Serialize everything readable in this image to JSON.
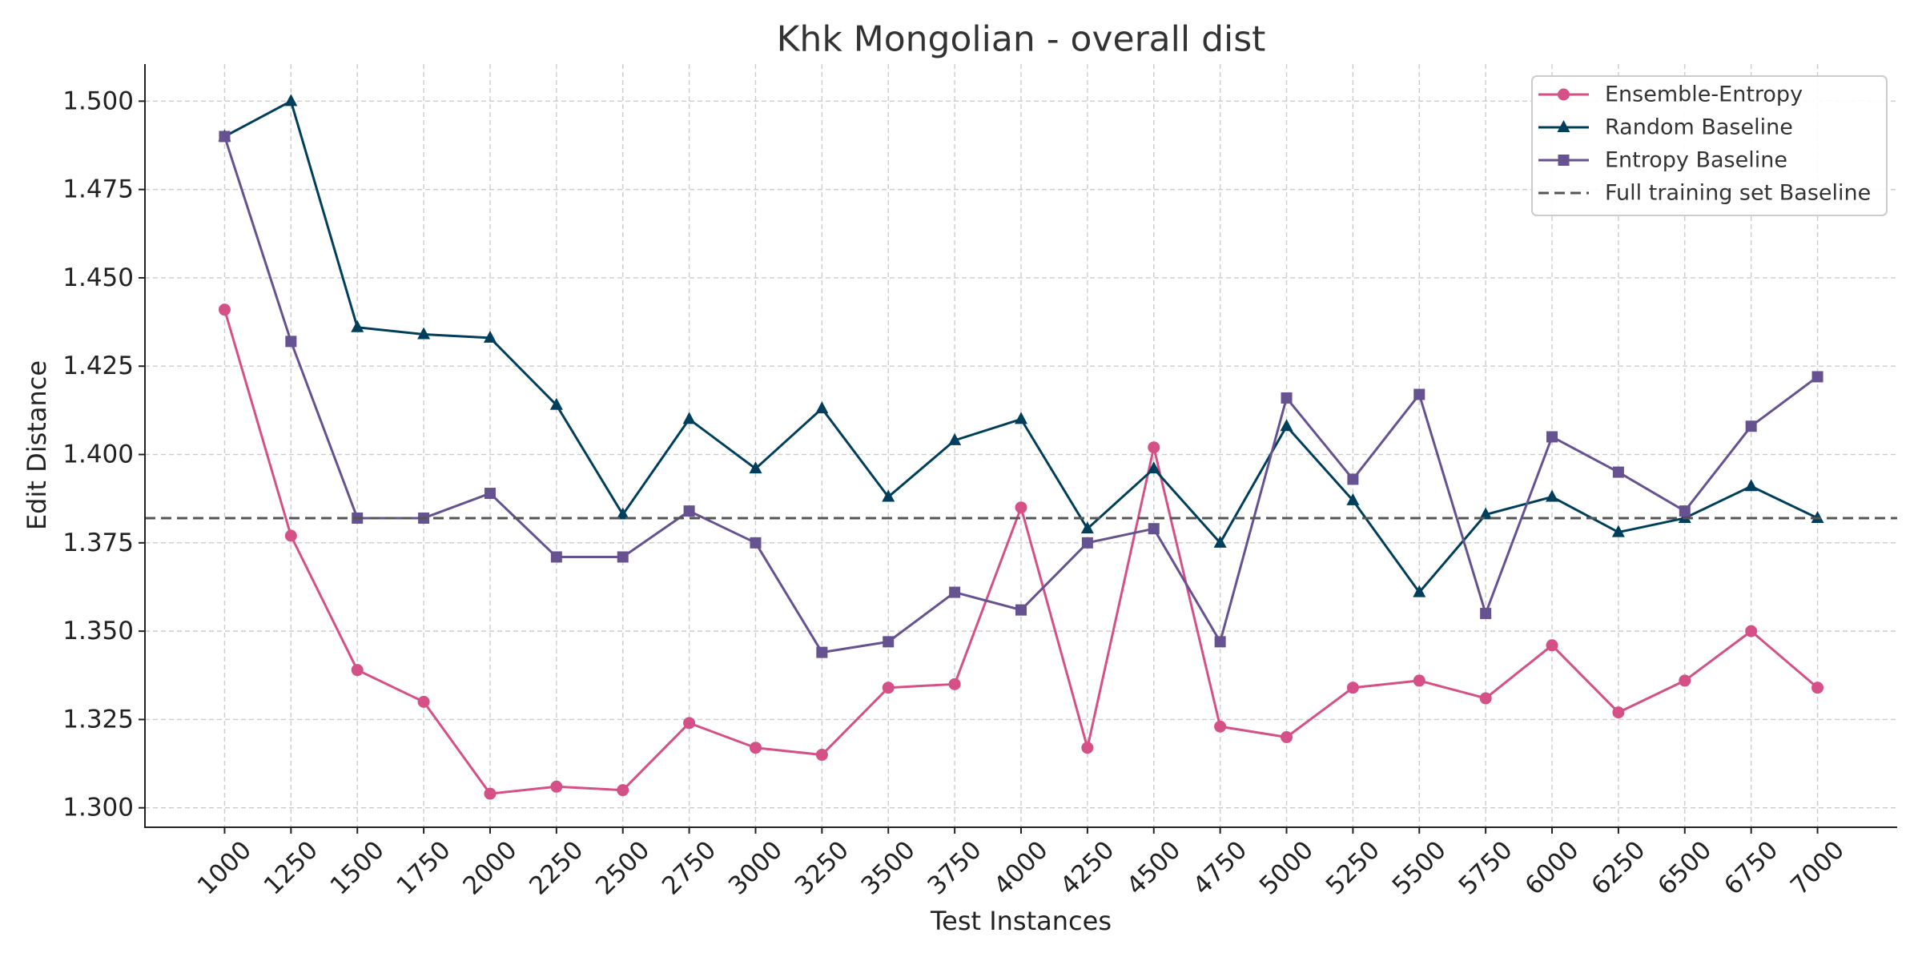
{
  "chart_data": {
    "type": "line",
    "title": "Khk Mongolian - overall dist",
    "xlabel": "Test Instances",
    "ylabel": "Edit Distance",
    "xlim": [
      700,
      7300
    ],
    "ylim": [
      1.2945,
      1.5105
    ],
    "grid": true,
    "legend_position": "top-right",
    "x": [
      1000,
      1250,
      1500,
      1750,
      2000,
      2250,
      2500,
      2750,
      3000,
      3250,
      3500,
      3750,
      4000,
      4250,
      4500,
      4750,
      5000,
      5250,
      5500,
      5750,
      6000,
      6250,
      6500,
      6750,
      7000
    ],
    "x_tick_labels": [
      "1000",
      "1250",
      "1500",
      "1750",
      "2000",
      "2250",
      "2500",
      "2750",
      "3000",
      "3250",
      "3500",
      "3750",
      "4000",
      "4250",
      "4500",
      "4750",
      "5000",
      "5250",
      "5500",
      "5750",
      "6000",
      "6250",
      "6500",
      "6750",
      "7000"
    ],
    "y_ticks": [
      1.3,
      1.325,
      1.35,
      1.375,
      1.4,
      1.425,
      1.45,
      1.475,
      1.5
    ],
    "y_tick_labels": [
      "1.300",
      "1.325",
      "1.350",
      "1.375",
      "1.400",
      "1.425",
      "1.450",
      "1.475",
      "1.500"
    ],
    "series": [
      {
        "name": "Ensemble-Entropy",
        "color": "#d45087",
        "marker": "circle",
        "values": [
          1.441,
          1.377,
          1.339,
          1.33,
          1.304,
          1.306,
          1.305,
          1.324,
          1.317,
          1.315,
          1.334,
          1.335,
          1.385,
          1.317,
          1.402,
          1.323,
          1.32,
          1.334,
          1.336,
          1.331,
          1.346,
          1.327,
          1.336,
          1.35,
          1.334
        ]
      },
      {
        "name": "Random Baseline",
        "color": "#003f5c",
        "marker": "triangle",
        "values": [
          1.49,
          1.5,
          1.436,
          1.434,
          1.433,
          1.414,
          1.383,
          1.41,
          1.396,
          1.413,
          1.388,
          1.404,
          1.41,
          1.379,
          1.396,
          1.375,
          1.408,
          1.387,
          1.361,
          1.383,
          1.388,
          1.378,
          1.382,
          1.391,
          1.382
        ]
      },
      {
        "name": "Entropy Baseline",
        "color": "#665191",
        "marker": "square",
        "values": [
          1.49,
          1.432,
          1.382,
          1.382,
          1.389,
          1.371,
          1.371,
          1.384,
          1.375,
          1.344,
          1.347,
          1.361,
          1.356,
          1.375,
          1.379,
          1.347,
          1.416,
          1.393,
          1.417,
          1.355,
          1.405,
          1.395,
          1.384,
          1.408,
          1.422
        ]
      }
    ],
    "baseline": {
      "name": "Full training set Baseline",
      "value": 1.382,
      "color": "#555555",
      "line_style": "dashed"
    }
  }
}
